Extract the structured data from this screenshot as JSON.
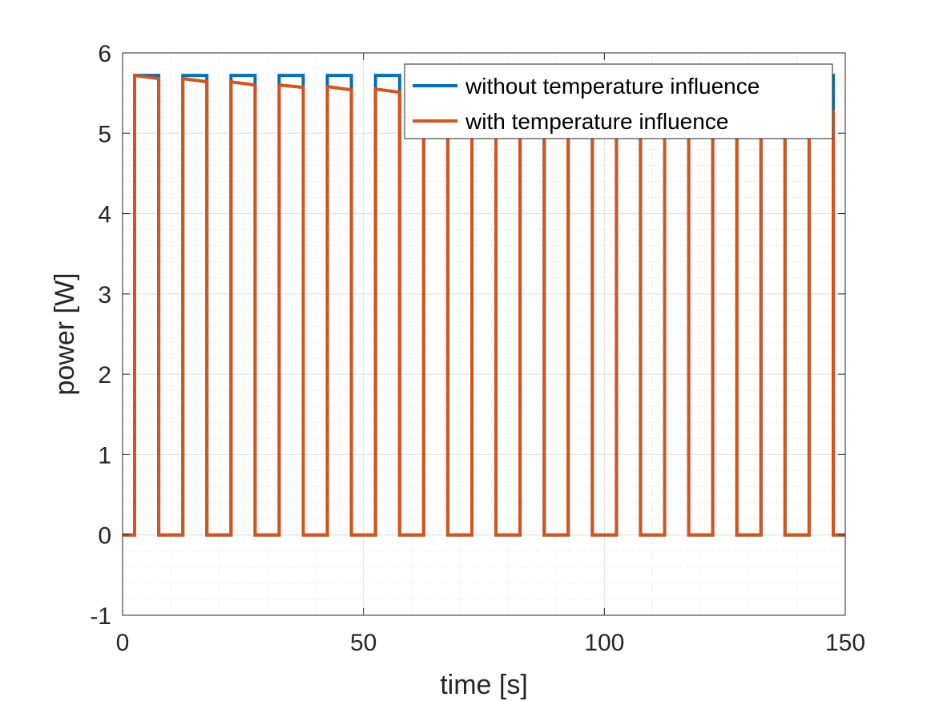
{
  "chart_data": {
    "type": "line",
    "title": "",
    "xlabel": "time [s]",
    "ylabel": "power [W]",
    "xlim": [
      0,
      150
    ],
    "ylim": [
      -1,
      6
    ],
    "xticks": [
      0,
      50,
      100,
      150
    ],
    "yticks": [
      -1,
      0,
      1,
      2,
      3,
      4,
      5,
      6
    ],
    "grid": true,
    "minor_grid": true,
    "legend_position": "top-right",
    "pulses": {
      "period_s": 10,
      "first_on_s": 2.5,
      "on_duration_s": 5,
      "count": 15,
      "on_starts_s": [
        2.5,
        12.5,
        22.5,
        32.5,
        42.5,
        52.5,
        62.5,
        72.5,
        82.5,
        92.5,
        102.5,
        112.5,
        122.5,
        132.5,
        142.5
      ]
    },
    "series": [
      {
        "name": "without temperature influence",
        "color": "#0072BD",
        "high_values_W": [
          5.72,
          5.72,
          5.72,
          5.72,
          5.72,
          5.72,
          5.72,
          5.72,
          5.72,
          5.72,
          5.72,
          5.72,
          5.72,
          5.72,
          5.72
        ],
        "low_value_W": 0
      },
      {
        "name": "with temperature influence",
        "color": "#D95319",
        "high_start_values_W": [
          5.72,
          5.68,
          5.64,
          5.6,
          5.58,
          5.55,
          5.5,
          5.45,
          5.42,
          5.4,
          5.38,
          5.36,
          5.34,
          5.32,
          5.3
        ],
        "high_end_values_W": [
          5.68,
          5.64,
          5.6,
          5.57,
          5.54,
          5.51,
          5.46,
          5.42,
          5.39,
          5.37,
          5.35,
          5.33,
          5.31,
          5.29,
          5.27
        ],
        "low_value_W": 0
      }
    ]
  }
}
